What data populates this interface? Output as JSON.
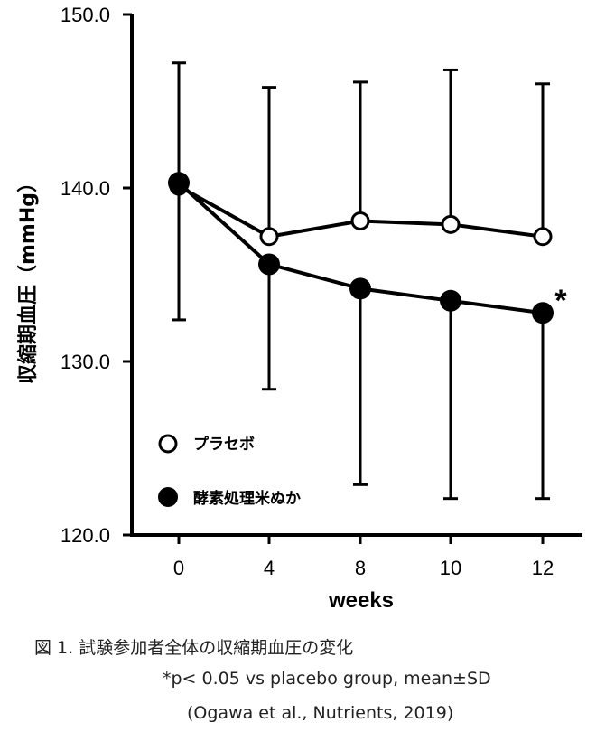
{
  "chart_data": {
    "type": "line",
    "ylabel": "収縮期血圧（mmHg）",
    "xlabel": "weeks",
    "x": [
      0,
      4,
      8,
      10,
      12
    ],
    "x_tick_labels": [
      "0",
      "4",
      "8",
      "10",
      "12"
    ],
    "ylim": [
      120,
      150
    ],
    "y_ticks": [
      120,
      130,
      140,
      150
    ],
    "y_tick_labels": [
      "120.0",
      "130.0",
      "140.0",
      "150.0"
    ],
    "grid": false,
    "legend_position": "bottom-left",
    "series": [
      {
        "name": "プラセボ",
        "marker": "open-circle",
        "values": [
          140.1,
          137.2,
          138.1,
          137.9,
          137.2
        ],
        "error_high": [
          147.2,
          145.8,
          146.1,
          146.8,
          146.0
        ],
        "error_low": [
          null,
          null,
          null,
          null,
          null
        ]
      },
      {
        "name": "酵素処理米ぬか",
        "marker": "filled-circle",
        "values": [
          140.3,
          135.6,
          134.2,
          133.5,
          132.8
        ],
        "error_high": [
          null,
          null,
          null,
          null,
          null
        ],
        "error_low": [
          132.4,
          128.4,
          122.9,
          122.1,
          122.1
        ]
      }
    ],
    "annotations": [
      {
        "text": "*",
        "x": 12,
        "y": 132.8
      }
    ],
    "caption": {
      "title": "図 1. 試験参加者全体の収縮期血圧の変化",
      "note": "*p< 0.05 vs placebo group, mean±SD",
      "source": "(Ogawa et al., Nutrients, 2019)"
    },
    "colors": {
      "line": "#000000",
      "open_fill": "#ffffff",
      "filled": "#000000"
    }
  }
}
